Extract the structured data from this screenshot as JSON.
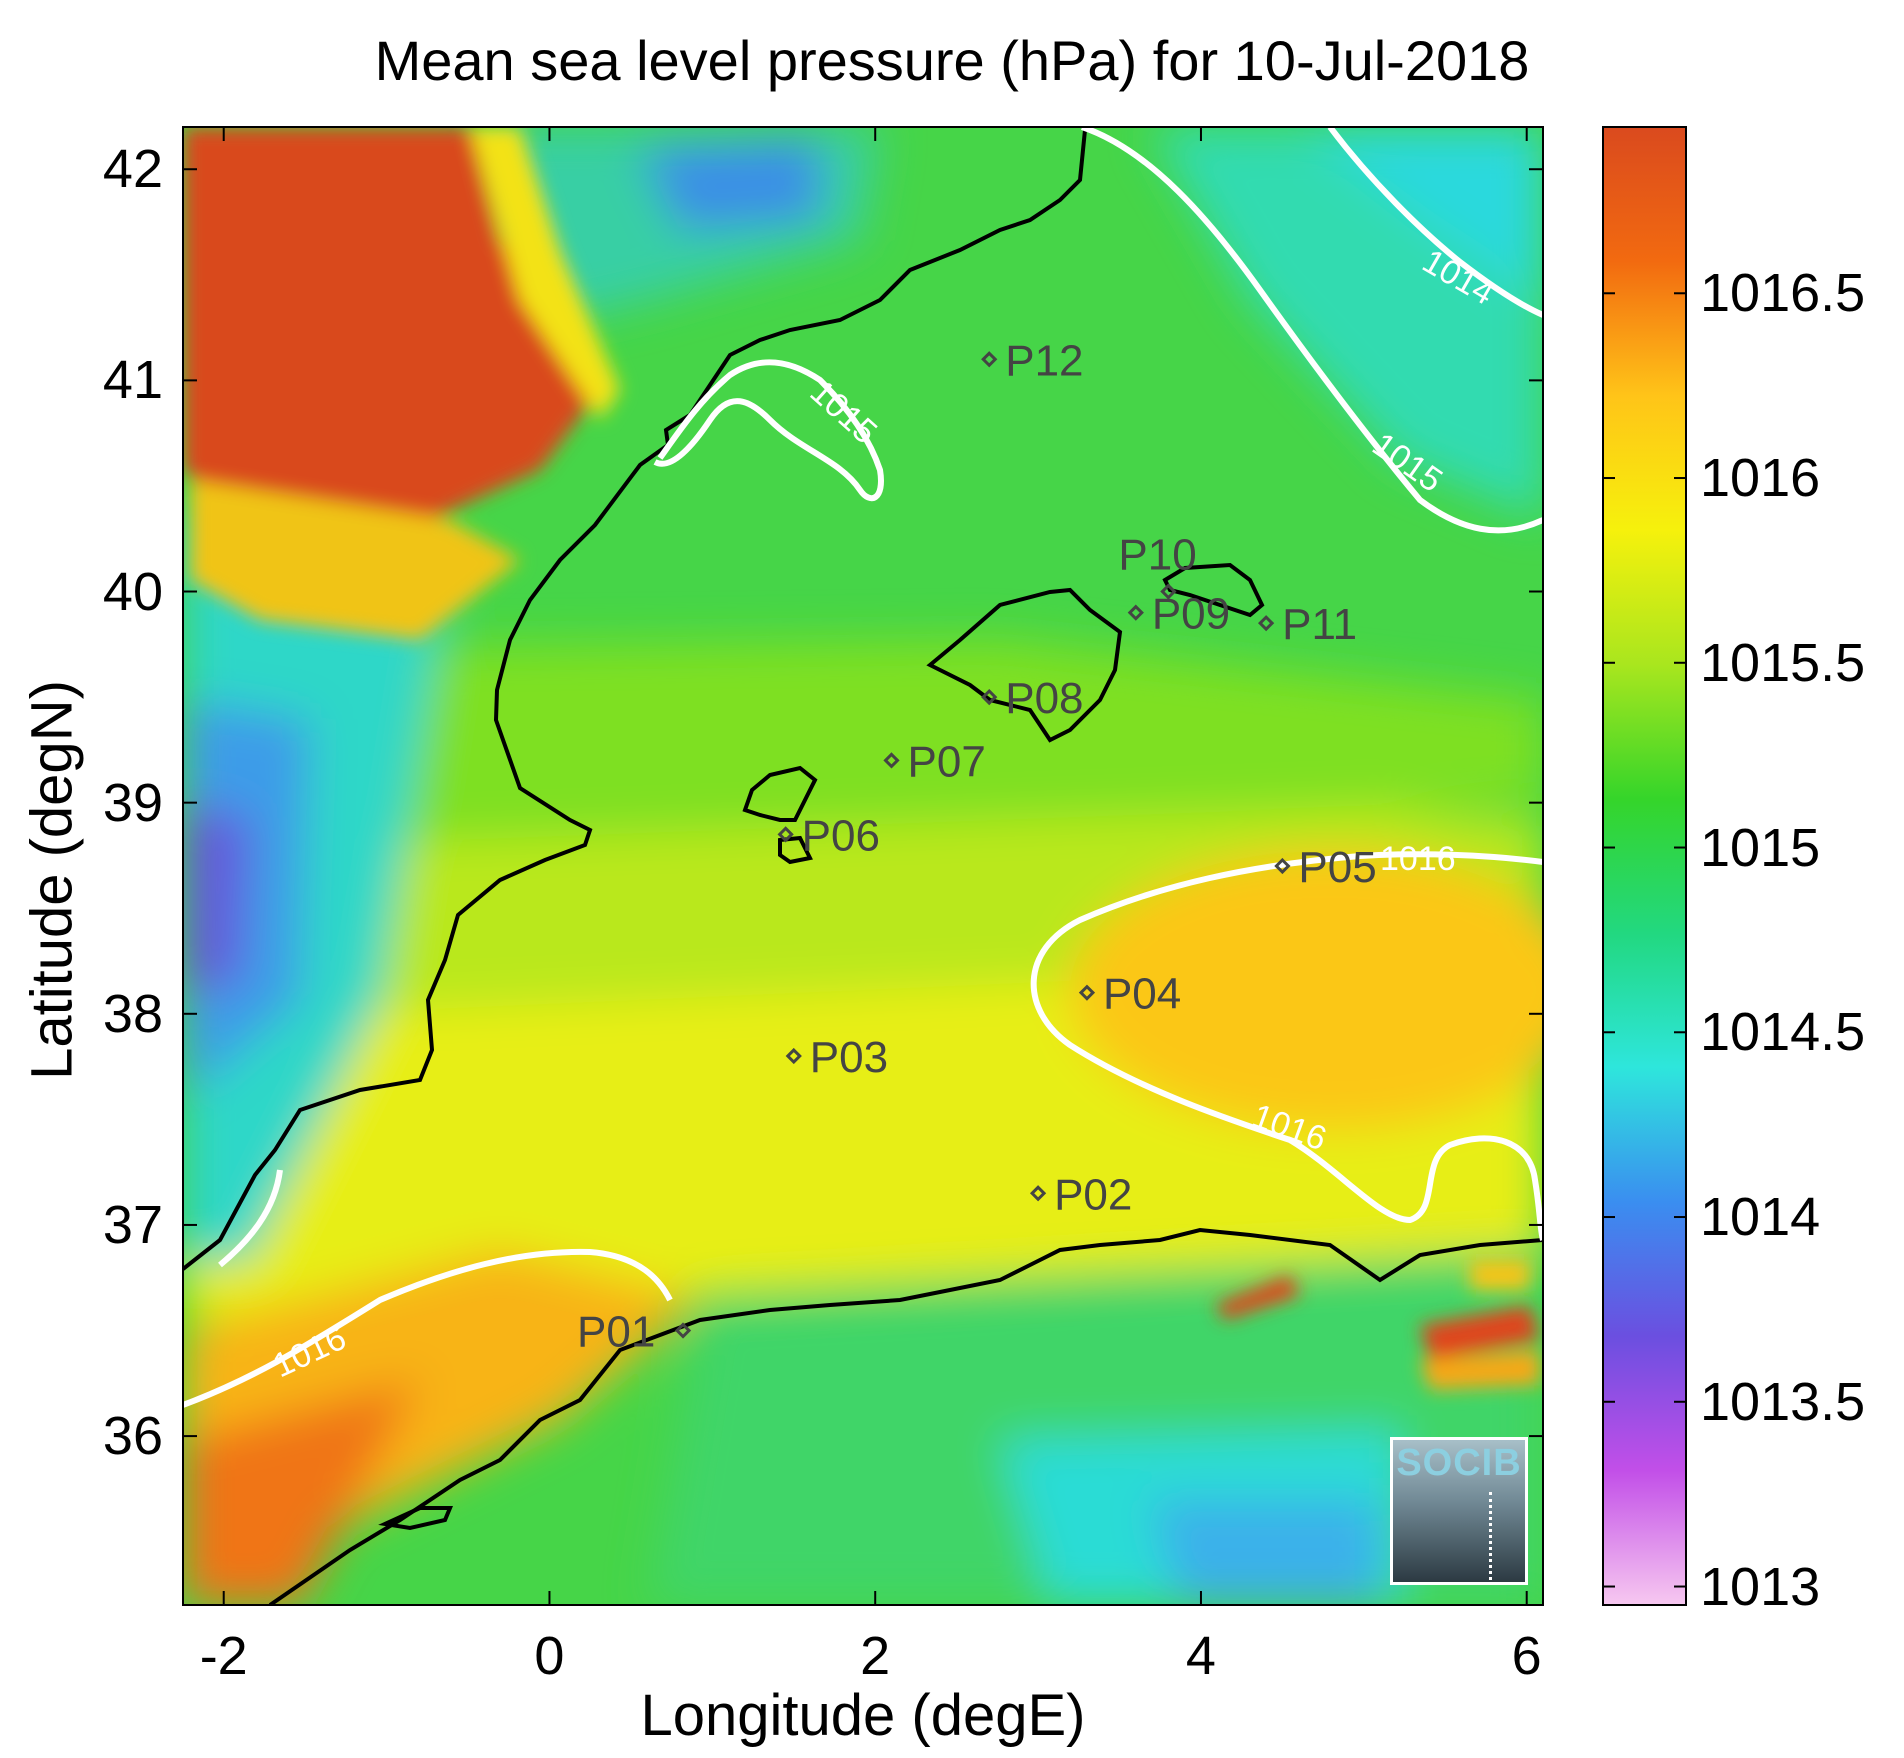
{
  "title": "Mean sea level pressure (hPa) for 10-Jul-2018",
  "xlabel": "Longitude (degE)",
  "ylabel": "Latitude (degN)",
  "x_ticks": [
    "-2",
    "0",
    "2",
    "4",
    "6"
  ],
  "y_ticks": [
    "36",
    "37",
    "38",
    "39",
    "40",
    "41",
    "42"
  ],
  "colorbar": {
    "ticks": [
      "1013",
      "1013.5",
      "1014",
      "1014.5",
      "1015",
      "1015.5",
      "1016",
      "1016.5"
    ],
    "range": [
      1012.95,
      1016.95
    ],
    "colormap": [
      "#f7c8f0",
      "#c24fe8",
      "#6b4fe0",
      "#3a8ef0",
      "#2ee6dc",
      "#22d880",
      "#35d52a",
      "#a9e61e",
      "#f6f10c",
      "#ffc418",
      "#f26a10",
      "#da4a1e"
    ]
  },
  "map": {
    "lon_range": [
      -2.25,
      6.1
    ],
    "lat_range": [
      35.2,
      42.2
    ],
    "contour_labels": [
      "1014",
      "1015",
      "1015",
      "1016",
      "1016",
      "1016"
    ],
    "stations": [
      {
        "id": "P01",
        "lon": 0.82,
        "lat": 36.5
      },
      {
        "id": "P02",
        "lon": 3.0,
        "lat": 37.15
      },
      {
        "id": "P03",
        "lon": 1.5,
        "lat": 37.8
      },
      {
        "id": "P04",
        "lon": 3.3,
        "lat": 38.1
      },
      {
        "id": "P05",
        "lon": 4.5,
        "lat": 38.7
      },
      {
        "id": "P06",
        "lon": 1.45,
        "lat": 38.85
      },
      {
        "id": "P07",
        "lon": 2.1,
        "lat": 39.2
      },
      {
        "id": "P08",
        "lon": 2.7,
        "lat": 39.5
      },
      {
        "id": "P09",
        "lon": 3.6,
        "lat": 39.9
      },
      {
        "id": "P10",
        "lon": 3.8,
        "lat": 40.0
      },
      {
        "id": "P11",
        "lon": 4.4,
        "lat": 39.85
      },
      {
        "id": "P12",
        "lon": 2.7,
        "lat": 41.1
      }
    ]
  },
  "logo_text": "SOCIB"
}
